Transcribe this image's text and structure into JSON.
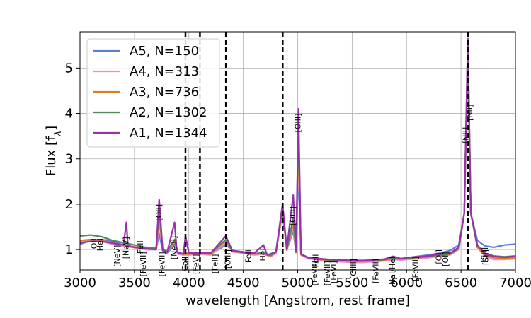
{
  "chart_data": {
    "type": "line",
    "xlabel": "wavelength [Angstrom, rest frame]",
    "ylabel": "Flux [f",
    "ylabel_sub": "λ",
    "ylabel_close": "]",
    "xlim": [
      3000,
      7000
    ],
    "ylim": [
      0.55,
      5.8
    ],
    "xticks": [
      3000,
      3500,
      4000,
      4500,
      5000,
      5500,
      6000,
      6500,
      7000
    ],
    "yticks": [
      1,
      2,
      3,
      4,
      5
    ],
    "grid": true,
    "legend_position": "top-left",
    "vlines": [
      3969,
      4102,
      4341,
      4862,
      6563
    ],
    "series": [
      {
        "name": "A5, N=150",
        "color": "#5b7fd6",
        "width": 2.2,
        "points": [
          [
            3000,
            1.12
          ],
          [
            3100,
            1.2
          ],
          [
            3200,
            1.22
          ],
          [
            3300,
            1.18
          ],
          [
            3400,
            1.1
          ],
          [
            3500,
            1.05
          ],
          [
            3600,
            1.0
          ],
          [
            3700,
            1.0
          ],
          [
            3727,
            1.35
          ],
          [
            3760,
            0.98
          ],
          [
            3800,
            0.92
          ],
          [
            3869,
            1.1
          ],
          [
            3900,
            0.9
          ],
          [
            3950,
            0.88
          ],
          [
            4000,
            0.9
          ],
          [
            4100,
            0.92
          ],
          [
            4200,
            0.9
          ],
          [
            4340,
            1.1
          ],
          [
            4400,
            0.98
          ],
          [
            4500,
            0.95
          ],
          [
            4600,
            0.9
          ],
          [
            4686,
            0.92
          ],
          [
            4750,
            0.85
          ],
          [
            4800,
            0.95
          ],
          [
            4861,
            1.8
          ],
          [
            4900,
            1.0
          ],
          [
            4959,
            1.4
          ],
          [
            4985,
            0.95
          ],
          [
            5007,
            2.8
          ],
          [
            5030,
            0.9
          ],
          [
            5100,
            0.82
          ],
          [
            5200,
            0.8
          ],
          [
            5300,
            0.75
          ],
          [
            5400,
            0.75
          ],
          [
            5500,
            0.72
          ],
          [
            5600,
            0.72
          ],
          [
            5700,
            0.75
          ],
          [
            5800,
            0.78
          ],
          [
            5876,
            0.82
          ],
          [
            5950,
            0.8
          ],
          [
            6000,
            0.82
          ],
          [
            6100,
            0.85
          ],
          [
            6200,
            0.88
          ],
          [
            6300,
            0.92
          ],
          [
            6400,
            0.98
          ],
          [
            6480,
            1.1
          ],
          [
            6530,
            1.8
          ],
          [
            6563,
            5.2
          ],
          [
            6590,
            1.8
          ],
          [
            6650,
            1.2
          ],
          [
            6720,
            1.08
          ],
          [
            6800,
            1.05
          ],
          [
            6900,
            1.1
          ],
          [
            7000,
            1.12
          ]
        ]
      },
      {
        "name": "A4, N=313",
        "color": "#f08cc0",
        "width": 2.2,
        "points": [
          [
            3000,
            1.18
          ],
          [
            3100,
            1.2
          ],
          [
            3200,
            1.18
          ],
          [
            3300,
            1.12
          ],
          [
            3400,
            1.08
          ],
          [
            3500,
            1.04
          ],
          [
            3600,
            1.0
          ],
          [
            3700,
            1.0
          ],
          [
            3727,
            1.6
          ],
          [
            3760,
            0.98
          ],
          [
            3800,
            0.93
          ],
          [
            3869,
            1.15
          ],
          [
            3900,
            0.9
          ],
          [
            3950,
            0.88
          ],
          [
            4000,
            0.88
          ],
          [
            4100,
            0.9
          ],
          [
            4200,
            0.88
          ],
          [
            4340,
            1.15
          ],
          [
            4400,
            0.95
          ],
          [
            4500,
            0.92
          ],
          [
            4600,
            0.88
          ],
          [
            4686,
            0.9
          ],
          [
            4750,
            0.84
          ],
          [
            4800,
            0.92
          ],
          [
            4861,
            1.85
          ],
          [
            4900,
            0.98
          ],
          [
            4959,
            1.5
          ],
          [
            4985,
            0.93
          ],
          [
            5007,
            3.2
          ],
          [
            5030,
            0.88
          ],
          [
            5100,
            0.8
          ],
          [
            5200,
            0.77
          ],
          [
            5300,
            0.74
          ],
          [
            5400,
            0.73
          ],
          [
            5500,
            0.72
          ],
          [
            5600,
            0.72
          ],
          [
            5700,
            0.73
          ],
          [
            5800,
            0.75
          ],
          [
            5876,
            0.78
          ],
          [
            5950,
            0.77
          ],
          [
            6000,
            0.78
          ],
          [
            6100,
            0.8
          ],
          [
            6200,
            0.82
          ],
          [
            6300,
            0.85
          ],
          [
            6400,
            0.88
          ],
          [
            6480,
            1.0
          ],
          [
            6530,
            1.8
          ],
          [
            6563,
            5.4
          ],
          [
            6590,
            1.8
          ],
          [
            6650,
            1.05
          ],
          [
            6720,
            0.85
          ],
          [
            6800,
            0.78
          ],
          [
            6900,
            0.78
          ],
          [
            7000,
            0.8
          ]
        ]
      },
      {
        "name": "A3, N=736",
        "color": "#e07b25",
        "width": 2.2,
        "points": [
          [
            3000,
            1.2
          ],
          [
            3100,
            1.22
          ],
          [
            3200,
            1.2
          ],
          [
            3300,
            1.14
          ],
          [
            3400,
            1.1
          ],
          [
            3500,
            1.06
          ],
          [
            3600,
            1.02
          ],
          [
            3700,
            1.02
          ],
          [
            3727,
            1.8
          ],
          [
            3760,
            1.0
          ],
          [
            3800,
            0.95
          ],
          [
            3869,
            1.2
          ],
          [
            3900,
            0.92
          ],
          [
            3950,
            0.9
          ],
          [
            4000,
            0.9
          ],
          [
            4100,
            0.92
          ],
          [
            4200,
            0.9
          ],
          [
            4340,
            1.2
          ],
          [
            4400,
            0.96
          ],
          [
            4500,
            0.93
          ],
          [
            4600,
            0.9
          ],
          [
            4686,
            0.92
          ],
          [
            4750,
            0.86
          ],
          [
            4800,
            0.94
          ],
          [
            4861,
            1.9
          ],
          [
            4900,
            0.99
          ],
          [
            4959,
            1.6
          ],
          [
            4985,
            0.94
          ],
          [
            5007,
            3.5
          ],
          [
            5030,
            0.89
          ],
          [
            5100,
            0.81
          ],
          [
            5200,
            0.78
          ],
          [
            5300,
            0.76
          ],
          [
            5400,
            0.75
          ],
          [
            5500,
            0.74
          ],
          [
            5600,
            0.74
          ],
          [
            5700,
            0.75
          ],
          [
            5800,
            0.77
          ],
          [
            5876,
            0.8
          ],
          [
            5950,
            0.79
          ],
          [
            6000,
            0.8
          ],
          [
            6100,
            0.82
          ],
          [
            6200,
            0.84
          ],
          [
            6300,
            0.87
          ],
          [
            6400,
            0.9
          ],
          [
            6480,
            1.02
          ],
          [
            6530,
            1.8
          ],
          [
            6563,
            5.5
          ],
          [
            6590,
            1.8
          ],
          [
            6650,
            1.05
          ],
          [
            6720,
            0.88
          ],
          [
            6800,
            0.82
          ],
          [
            6900,
            0.8
          ],
          [
            7000,
            0.82
          ]
        ]
      },
      {
        "name": "A2, N=1302",
        "color": "#4f8a5b",
        "width": 2.2,
        "points": [
          [
            3000,
            1.3
          ],
          [
            3100,
            1.32
          ],
          [
            3200,
            1.28
          ],
          [
            3300,
            1.2
          ],
          [
            3400,
            1.15
          ],
          [
            3500,
            1.1
          ],
          [
            3600,
            1.05
          ],
          [
            3700,
            1.03
          ],
          [
            3727,
            1.9
          ],
          [
            3760,
            1.0
          ],
          [
            3800,
            0.96
          ],
          [
            3869,
            1.22
          ],
          [
            3900,
            0.93
          ],
          [
            3950,
            0.91
          ],
          [
            4000,
            0.92
          ],
          [
            4100,
            0.93
          ],
          [
            4200,
            0.92
          ],
          [
            4340,
            1.22
          ],
          [
            4400,
            0.97
          ],
          [
            4500,
            0.94
          ],
          [
            4600,
            0.91
          ],
          [
            4686,
            0.93
          ],
          [
            4750,
            0.87
          ],
          [
            4800,
            0.95
          ],
          [
            4861,
            1.95
          ],
          [
            4900,
            1.0
          ],
          [
            4959,
            1.7
          ],
          [
            4985,
            0.95
          ],
          [
            5007,
            3.8
          ],
          [
            5030,
            0.9
          ],
          [
            5100,
            0.82
          ],
          [
            5200,
            0.79
          ],
          [
            5300,
            0.77
          ],
          [
            5400,
            0.76
          ],
          [
            5500,
            0.75
          ],
          [
            5600,
            0.75
          ],
          [
            5700,
            0.76
          ],
          [
            5800,
            0.78
          ],
          [
            5876,
            0.81
          ],
          [
            5950,
            0.8
          ],
          [
            6000,
            0.81
          ],
          [
            6100,
            0.83
          ],
          [
            6200,
            0.85
          ],
          [
            6300,
            0.88
          ],
          [
            6400,
            0.91
          ],
          [
            6480,
            1.03
          ],
          [
            6530,
            1.8
          ],
          [
            6563,
            5.6
          ],
          [
            6590,
            1.8
          ],
          [
            6650,
            1.08
          ],
          [
            6720,
            0.92
          ],
          [
            6800,
            0.86
          ],
          [
            6900,
            0.84
          ],
          [
            7000,
            0.86
          ]
        ]
      },
      {
        "name": "A1, N=1344",
        "color": "#9a31a8",
        "width": 2.2,
        "points": [
          [
            3000,
            1.15
          ],
          [
            3100,
            1.18
          ],
          [
            3200,
            1.18
          ],
          [
            3300,
            1.14
          ],
          [
            3400,
            1.1
          ],
          [
            3426,
            1.6
          ],
          [
            3440,
            1.08
          ],
          [
            3500,
            1.05
          ],
          [
            3600,
            1.02
          ],
          [
            3700,
            1.0
          ],
          [
            3727,
            2.1
          ],
          [
            3760,
            0.98
          ],
          [
            3800,
            0.94
          ],
          [
            3869,
            1.6
          ],
          [
            3890,
            0.95
          ],
          [
            3950,
            0.9
          ],
          [
            3969,
            1.3
          ],
          [
            4000,
            0.92
          ],
          [
            4100,
            0.93
          ],
          [
            4200,
            0.92
          ],
          [
            4340,
            1.3
          ],
          [
            4400,
            0.97
          ],
          [
            4500,
            0.94
          ],
          [
            4600,
            0.92
          ],
          [
            4686,
            1.1
          ],
          [
            4720,
            0.88
          ],
          [
            4800,
            0.95
          ],
          [
            4861,
            2.0
          ],
          [
            4900,
            1.02
          ],
          [
            4959,
            2.2
          ],
          [
            4985,
            0.96
          ],
          [
            5007,
            4.1
          ],
          [
            5030,
            0.9
          ],
          [
            5100,
            0.82
          ],
          [
            5200,
            0.8
          ],
          [
            5300,
            0.78
          ],
          [
            5400,
            0.77
          ],
          [
            5500,
            0.76
          ],
          [
            5600,
            0.76
          ],
          [
            5700,
            0.77
          ],
          [
            5800,
            0.79
          ],
          [
            5876,
            0.85
          ],
          [
            5950,
            0.8
          ],
          [
            6000,
            0.82
          ],
          [
            6100,
            0.84
          ],
          [
            6200,
            0.86
          ],
          [
            6300,
            0.9
          ],
          [
            6400,
            0.92
          ],
          [
            6480,
            1.05
          ],
          [
            6530,
            1.8
          ],
          [
            6563,
            5.65
          ],
          [
            6590,
            1.8
          ],
          [
            6650,
            1.1
          ],
          [
            6720,
            0.9
          ],
          [
            6800,
            0.85
          ],
          [
            6900,
            0.83
          ],
          [
            7000,
            0.85
          ]
        ]
      }
    ],
    "line_labels": [
      {
        "text": "[OII]",
        "x": 3727,
        "y": 2.0
      },
      {
        "text": "[OIII]",
        "x": 5007,
        "y": 4.0
      },
      {
        "text": "[OIII]",
        "x": 4959,
        "y": 1.95
      },
      {
        "text": "[NII]",
        "x": 6583,
        "y": 4.2
      },
      {
        "text": "[NII]",
        "x": 6548,
        "y": 3.7
      },
      {
        "text": "OIII",
        "x": 3133,
        "y": 1.3
      },
      {
        "text": "HeI",
        "x": 3188,
        "y": 1.25
      },
      {
        "text": "[NeV]",
        "x": 3426,
        "y": 1.28
      },
      {
        "text": "[NeV]",
        "x": 3346,
        "y": 1.1
      },
      {
        "text": "FeII",
        "x": 3560,
        "y": 1.2
      },
      {
        "text": "[FeVII]",
        "x": 3586,
        "y": 0.95
      },
      {
        "text": "[FeVII]",
        "x": 3759,
        "y": 0.95
      },
      {
        "text": "[NeIII]",
        "x": 3869,
        "y": 1.3
      },
      {
        "text": "HeII",
        "x": 4686,
        "y": 1.08
      },
      {
        "text": "FeII",
        "x": 4550,
        "y": 1.0
      },
      {
        "text": "FeII",
        "x": 5170,
        "y": 0.9
      },
      {
        "text": "[FeVII]",
        "x": 5158,
        "y": 0.75
      },
      {
        "text": "[FeVII]",
        "x": 5276,
        "y": 0.75
      },
      {
        "text": "[FeVI]",
        "x": 5335,
        "y": 0.75
      },
      {
        "text": "[ClIII]",
        "x": 5518,
        "y": 0.8
      },
      {
        "text": "[FeVII]",
        "x": 5721,
        "y": 0.8
      },
      {
        "text": "NaI/HeI",
        "x": 5876,
        "y": 0.85
      },
      {
        "text": "[FeVII]",
        "x": 6087,
        "y": 0.85
      },
      {
        "text": "[OI]",
        "x": 6300,
        "y": 1.0
      },
      {
        "text": "[OI]",
        "x": 6364,
        "y": 0.95
      },
      {
        "text": "[SII]",
        "x": 6716,
        "y": 1.05
      },
      {
        "text": "[SII]",
        "x": 6731,
        "y": 1.0
      },
      {
        "text": "CaII",
        "x": 3969,
        "y": 0.85
      },
      {
        "text": "[FeV]",
        "x": 4071,
        "y": 0.9
      },
      {
        "text": "[FeII]",
        "x": 4244,
        "y": 0.9
      },
      {
        "text": "[OIII]",
        "x": 4363,
        "y": 1.0
      }
    ]
  }
}
